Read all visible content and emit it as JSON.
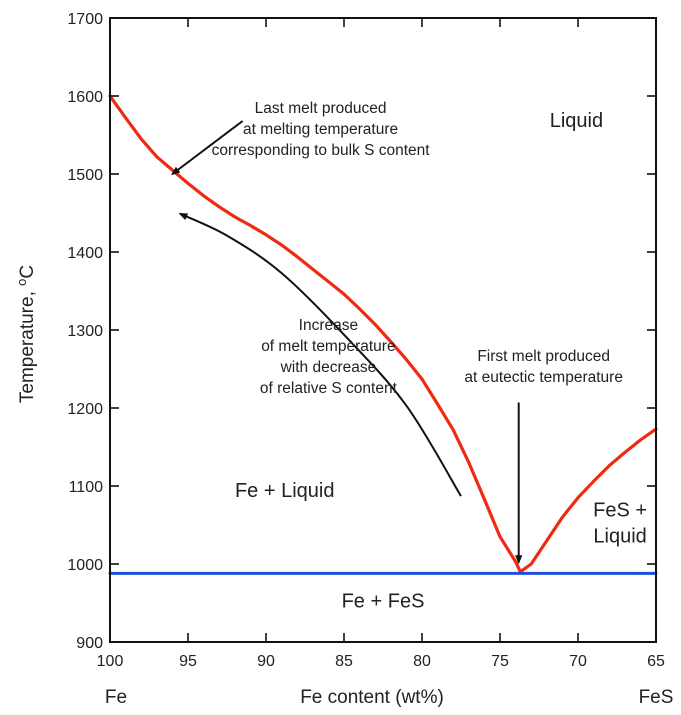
{
  "chart_data": {
    "type": "line",
    "title": "",
    "xlabel": "Fe content (wt%)",
    "ylabel": "Temperature, oC",
    "ylabel_parts": {
      "text": "Temperature, ",
      "sup": "o",
      "unit": "C"
    },
    "x_reversed": true,
    "xlim": [
      100,
      65
    ],
    "ylim": [
      900,
      1700
    ],
    "x_ticks": [
      100,
      95,
      90,
      85,
      80,
      75,
      70,
      65
    ],
    "y_ticks": [
      900,
      1000,
      1100,
      1200,
      1300,
      1400,
      1500,
      1600,
      1700
    ],
    "x_end_labels": {
      "left": "Fe",
      "right": "FeS"
    },
    "grid": false,
    "series": [
      {
        "color": "#ee2a12",
        "style": "liquidus",
        "x": [
          100,
          99,
          98,
          97,
          96,
          95,
          94,
          93,
          92,
          91,
          90,
          89,
          88,
          87,
          86,
          85,
          84,
          83,
          82,
          81,
          80,
          79,
          78,
          77,
          76,
          75,
          74,
          73.7
        ],
        "y": [
          1600,
          1572,
          1545,
          1522,
          1505,
          1488,
          1472,
          1458,
          1445,
          1434,
          1422,
          1409,
          1394,
          1378,
          1362,
          1346,
          1327,
          1307,
          1285,
          1262,
          1237,
          1205,
          1172,
          1130,
          1083,
          1035,
          1003,
          990
        ]
      },
      {
        "color": "#ee2a12",
        "style": "liquidus",
        "x": [
          73.7,
          73,
          72,
          71,
          70,
          69,
          68,
          67,
          66,
          65
        ],
        "y": [
          990,
          1000,
          1030,
          1060,
          1085,
          1106,
          1126,
          1143,
          1159,
          1173
        ]
      },
      {
        "color": "#1f4fe0",
        "style": "eutectic",
        "x": [
          100,
          65
        ],
        "y": [
          988,
          988
        ]
      }
    ],
    "arrows": [
      {
        "name": "arrow-last-melt",
        "x": [
          91.5,
          96
        ],
        "y": [
          1568,
          1500
        ]
      },
      {
        "name": "arrow-increase",
        "x": [
          77.5,
          81,
          85,
          89,
          92.5,
          95.5
        ],
        "y": [
          1087,
          1203,
          1294,
          1373,
          1421,
          1449
        ]
      },
      {
        "name": "arrow-first-melt",
        "x": [
          73.8,
          73.8
        ],
        "y": [
          1207,
          1002
        ]
      }
    ],
    "annotations": [
      {
        "name": "annotation-last-melt",
        "x": 86.5,
        "y": 1578,
        "lines": [
          "Last melt produced",
          "at melting temperature",
          "corresponding to bulk S content"
        ]
      },
      {
        "name": "annotation-increase",
        "x": 86,
        "y": 1300,
        "lines": [
          "Increase",
          "of melt temperature",
          "with decrease",
          "of relative S content"
        ]
      },
      {
        "name": "annotation-first-melt",
        "x": 72.2,
        "y": 1260,
        "lines": [
          "First melt produced",
          "at eutectic temperature"
        ]
      }
    ],
    "regions": [
      {
        "name": "region-liquid",
        "label": "Liquid",
        "x": 70.1,
        "y": 1560,
        "lines": [
          "Liquid"
        ]
      },
      {
        "name": "region-fe-liquid",
        "label": "Fe + Liquid",
        "x": 88.8,
        "y": 1086,
        "lines": [
          "Fe + Liquid"
        ]
      },
      {
        "name": "region-fes-liquid",
        "label": "FeS + Liquid",
        "x": 67.3,
        "y": 1061,
        "lines": [
          "FeS +",
          "Liquid"
        ]
      },
      {
        "name": "region-fe-fes",
        "label": "Fe + FeS",
        "x": 82.5,
        "y": 944,
        "lines": [
          "Fe + FeS"
        ]
      }
    ]
  }
}
